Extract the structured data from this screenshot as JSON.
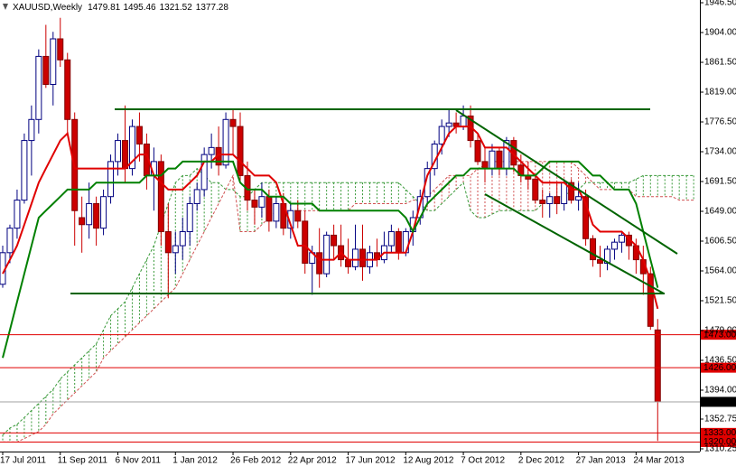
{
  "chart_data": {
    "type": "candlestick",
    "title": "XAUUSD,Weekly",
    "categories": [
      "17 Jul 2011",
      null,
      null,
      null,
      null,
      null,
      null,
      null,
      "11 Sep 2011",
      null,
      null,
      null,
      null,
      null,
      null,
      null,
      "6 Nov 2011",
      null,
      null,
      null,
      null,
      null,
      null,
      null,
      "1 Jan 2012",
      null,
      null,
      null,
      null,
      null,
      null,
      null,
      "26 Feb 2012",
      null,
      null,
      null,
      null,
      null,
      null,
      null,
      "22 Apr 2012",
      null,
      null,
      null,
      null,
      null,
      null,
      null,
      "17 Jun 2012",
      null,
      null,
      null,
      null,
      null,
      null,
      null,
      "12 Aug 2012",
      null,
      null,
      null,
      null,
      null,
      null,
      null,
      "7 Oct 2012",
      null,
      null,
      null,
      null,
      null,
      null,
      null,
      "2 Dec 2012",
      null,
      null,
      null,
      null,
      null,
      null,
      null,
      "27 Jan 2013",
      null,
      null,
      null,
      null,
      null,
      null,
      null,
      "24 Mar 2013",
      null,
      null,
      null,
      null,
      null,
      null,
      null,
      null
    ],
    "open": [
      1545,
      1590,
      1625,
      1665,
      1750,
      1780,
      1870,
      1830,
      1895,
      1865,
      1780,
      1640,
      1630,
      1660,
      1625,
      1670,
      1720,
      1750,
      1710,
      1770,
      1745,
      1700,
      1720,
      1620,
      1590,
      1600,
      1620,
      1660,
      1680,
      1730,
      1740,
      1715,
      1780,
      1770,
      1700,
      1665,
      1655,
      1670,
      1635,
      1660,
      1625,
      1650,
      1635,
      1575,
      1590,
      1560,
      1615,
      1600,
      1580,
      1570,
      1595,
      1570,
      1590,
      1580,
      1600,
      1620,
      1590,
      1620,
      1640,
      1670,
      1710,
      1745,
      1770,
      1775,
      1770,
      1785,
      1750,
      1720,
      1710,
      1735,
      1710,
      1750,
      1715,
      1700,
      1695,
      1665,
      1660,
      1670,
      1660,
      1690,
      1665,
      1670,
      1610,
      1580,
      1575,
      1595,
      1605,
      1615,
      1600,
      1580,
      1560,
      1479.81,
      null,
      null,
      null,
      null,
      null
    ],
    "high": [
      1600,
      1630,
      1680,
      1760,
      1800,
      1880,
      1915,
      1905,
      1925,
      1875,
      1790,
      1670,
      1690,
      1670,
      1680,
      1730,
      1760,
      1800,
      1780,
      1790,
      1760,
      1740,
      1730,
      1660,
      1620,
      1640,
      1670,
      1690,
      1740,
      1760,
      1770,
      1790,
      1795,
      1790,
      1720,
      1680,
      1690,
      1680,
      1670,
      1675,
      1660,
      1665,
      1650,
      1600,
      1625,
      1620,
      1630,
      1630,
      1610,
      1630,
      1630,
      1600,
      1610,
      1620,
      1630,
      1625,
      1625,
      1650,
      1680,
      1720,
      1750,
      1780,
      1795,
      1790,
      1800,
      1800,
      1760,
      1740,
      1745,
      1740,
      1755,
      1755,
      1730,
      1720,
      1700,
      1680,
      1675,
      1690,
      1695,
      1695,
      1690,
      1680,
      1615,
      1600,
      1600,
      1610,
      1620,
      1620,
      1610,
      1600,
      1570,
      1495.46,
      null,
      null,
      null,
      null,
      null
    ],
    "low": [
      1540,
      1575,
      1610,
      1660,
      1700,
      1760,
      1825,
      1800,
      1855,
      1760,
      1600,
      1590,
      1610,
      1600,
      1615,
      1660,
      1700,
      1690,
      1700,
      1720,
      1680,
      1650,
      1600,
      1525,
      1560,
      1580,
      1600,
      1650,
      1670,
      1710,
      1700,
      1710,
      1730,
      1690,
      1650,
      1630,
      1640,
      1620,
      1625,
      1615,
      1610,
      1625,
      1560,
      1530,
      1540,
      1555,
      1580,
      1570,
      1560,
      1565,
      1550,
      1560,
      1570,
      1575,
      1590,
      1580,
      1585,
      1600,
      1630,
      1660,
      1700,
      1730,
      1755,
      1760,
      1765,
      1740,
      1715,
      1690,
      1700,
      1700,
      1700,
      1705,
      1690,
      1680,
      1660,
      1640,
      1640,
      1645,
      1650,
      1660,
      1650,
      1600,
      1570,
      1555,
      1565,
      1580,
      1590,
      1580,
      1560,
      1530,
      1480,
      1321.52,
      null,
      null,
      null,
      null,
      null
    ],
    "close": [
      1590,
      1625,
      1665,
      1750,
      1780,
      1870,
      1830,
      1895,
      1865,
      1780,
      1650,
      1630,
      1660,
      1625,
      1670,
      1720,
      1750,
      1710,
      1770,
      1745,
      1700,
      1720,
      1620,
      1590,
      1600,
      1620,
      1660,
      1680,
      1730,
      1740,
      1715,
      1780,
      1770,
      1700,
      1665,
      1655,
      1670,
      1635,
      1660,
      1625,
      1650,
      1635,
      1575,
      1590,
      1560,
      1615,
      1600,
      1580,
      1570,
      1595,
      1570,
      1590,
      1580,
      1600,
      1620,
      1590,
      1620,
      1640,
      1670,
      1710,
      1745,
      1770,
      1775,
      1770,
      1785,
      1750,
      1720,
      1710,
      1735,
      1710,
      1750,
      1715,
      1700,
      1695,
      1665,
      1660,
      1670,
      1660,
      1690,
      1665,
      1670,
      1610,
      1580,
      1575,
      1595,
      1605,
      1615,
      1600,
      1580,
      1560,
      1485,
      1377.28,
      null,
      null,
      null,
      null,
      null
    ],
    "up_color": "#000080",
    "down_color": "#cc0000",
    "lines": [
      {
        "color": "#e00000",
        "values": [
          1560,
          1580,
          1600,
          1630,
          1660,
          1690,
          1710,
          1730,
          1750,
          1760,
          1710,
          1710,
          1710,
          1710,
          1710,
          1710,
          1710,
          1710,
          1720,
          1730,
          1730,
          1700,
          1690,
          1680,
          1680,
          1680,
          1690,
          1700,
          1720,
          1720,
          1730,
          1730,
          1730,
          1720,
          1710,
          1700,
          1700,
          1700,
          1690,
          1660,
          1630,
          1600,
          1600,
          1590,
          1580,
          1580,
          1580,
          1590,
          1580,
          1580,
          1580,
          1580,
          1580,
          1590,
          1590,
          1590,
          1590,
          1620,
          1660,
          1700,
          1720,
          1740,
          1760,
          1770,
          1770,
          1770,
          1760,
          1740,
          1740,
          1740,
          1740,
          1730,
          1720,
          1710,
          1700,
          1690,
          1690,
          1690,
          1690,
          1680,
          1680,
          1660,
          1630,
          1620,
          1620,
          1620,
          1620,
          1610,
          1600,
          1580,
          1550,
          1510,
          null,
          null,
          null,
          null,
          null
        ]
      },
      {
        "color": "#008000",
        "values": [
          1440,
          1480,
          1520,
          1560,
          1600,
          1640,
          1650,
          1660,
          1670,
          1680,
          1680,
          1680,
          1680,
          1690,
          1690,
          1690,
          1690,
          1690,
          1690,
          1690,
          1700,
          1700,
          1700,
          1710,
          1710,
          1720,
          1720,
          1720,
          1720,
          1720,
          1720,
          1720,
          1720,
          1690,
          1680,
          1680,
          1680,
          1670,
          1670,
          1670,
          1660,
          1660,
          1660,
          1660,
          1650,
          1650,
          1650,
          1650,
          1650,
          1650,
          1650,
          1650,
          1650,
          1650,
          1650,
          1650,
          1640,
          1620,
          1640,
          1660,
          1670,
          1680,
          1690,
          1700,
          1700,
          1710,
          1710,
          1710,
          1710,
          1710,
          1710,
          1710,
          1700,
          1700,
          1700,
          1710,
          1720,
          1720,
          1720,
          1720,
          1720,
          1710,
          1700,
          1700,
          1690,
          1680,
          1680,
          1680,
          1660,
          1620,
          1580,
          1540,
          null,
          null,
          null,
          null,
          null
        ]
      }
    ],
    "cloud": {
      "up_color": "#3a9a3a",
      "down_color": "#d05050",
      "span_a": [
        1330,
        1340,
        1345,
        1355,
        1365,
        1375,
        1385,
        1395,
        1410,
        1420,
        1430,
        1440,
        1450,
        1460,
        1480,
        1500,
        1510,
        1520,
        1540,
        1560,
        1580,
        1600,
        1630,
        1660,
        1690,
        1700,
        1700,
        1710,
        1700,
        1690,
        1690,
        1680,
        1680,
        1670,
        1670,
        1680,
        1690,
        1690,
        1690,
        1690,
        1690,
        1690,
        1690,
        1690,
        1690,
        1690,
        1690,
        1690,
        1690,
        1690,
        1690,
        1690,
        1690,
        1690,
        1690,
        1690,
        1680,
        1670,
        1660,
        1650,
        1650,
        1660,
        1670,
        1680,
        1690,
        1650,
        1640,
        1640,
        1645,
        1650,
        1650,
        1650,
        1650,
        1650,
        1650,
        1660,
        1660,
        1670,
        1670,
        1680,
        1680,
        1690,
        1690,
        1690,
        1690,
        1690,
        1690,
        1690,
        1695,
        1700,
        1700,
        1700,
        1700,
        1700,
        1700,
        1700,
        1700
      ],
      "span_b": [
        1320,
        1320,
        1320,
        1325,
        1330,
        1335,
        1345,
        1360,
        1370,
        1380,
        1390,
        1400,
        1410,
        1420,
        1440,
        1450,
        1460,
        1470,
        1480,
        1490,
        1500,
        1510,
        1520,
        1530,
        1540,
        1560,
        1580,
        1600,
        1620,
        1640,
        1660,
        1680,
        1700,
        1620,
        1620,
        1620,
        1630,
        1640,
        1650,
        1650,
        1650,
        1650,
        1650,
        1650,
        1650,
        1650,
        1650,
        1650,
        1650,
        1660,
        1660,
        1660,
        1660,
        1660,
        1660,
        1660,
        1660,
        1665,
        1665,
        1670,
        1680,
        1690,
        1700,
        1700,
        1700,
        1700,
        1710,
        1715,
        1720,
        1720,
        1720,
        1720,
        1720,
        1720,
        1720,
        1720,
        1720,
        1720,
        1720,
        1720,
        1710,
        1700,
        1690,
        1680,
        1680,
        1680,
        1680,
        1680,
        1670,
        1670,
        1670,
        1670,
        1670,
        1670,
        1665,
        1665,
        1665
      ]
    },
    "ylim": [
      1306.4,
      1950.4
    ],
    "yticks": [
      {
        "value": 1946.5,
        "label": "1946.50"
      },
      {
        "value": 1904,
        "label": "1904.00"
      },
      {
        "value": 1861.5,
        "label": "1861.50"
      },
      {
        "value": 1819,
        "label": "1819.00"
      },
      {
        "value": 1776.5,
        "label": "1776.50"
      },
      {
        "value": 1734,
        "label": "1734.00"
      },
      {
        "value": 1691.5,
        "label": "1691.50"
      },
      {
        "value": 1649,
        "label": "1649.00"
      },
      {
        "value": 1606.5,
        "label": "1606.50"
      },
      {
        "value": 1564,
        "label": "1564.00"
      },
      {
        "value": 1521.5,
        "label": "1521.50"
      },
      {
        "value": 1479,
        "label": "1479.00"
      },
      {
        "value": 1436.5,
        "label": "1436.50"
      },
      {
        "value": 1394,
        "label": "1394.00"
      },
      {
        "value": 1352.75,
        "label": "1352.75"
      },
      {
        "value": 1310.25,
        "label": "1310.25"
      }
    ],
    "levels": [
      {
        "value": 1473,
        "label": "1473.00",
        "color": "#e00000"
      },
      {
        "value": 1426,
        "label": "1426.00",
        "color": "#e00000"
      },
      {
        "value": 1377.28,
        "label": "1377.28",
        "color": "#a0a0a0",
        "box": "#000000"
      },
      {
        "value": 1333,
        "label": "1333.00",
        "color": "#e00000"
      },
      {
        "value": 1320,
        "label": "1320.00",
        "color": "#e00000"
      }
    ]
  }
}
